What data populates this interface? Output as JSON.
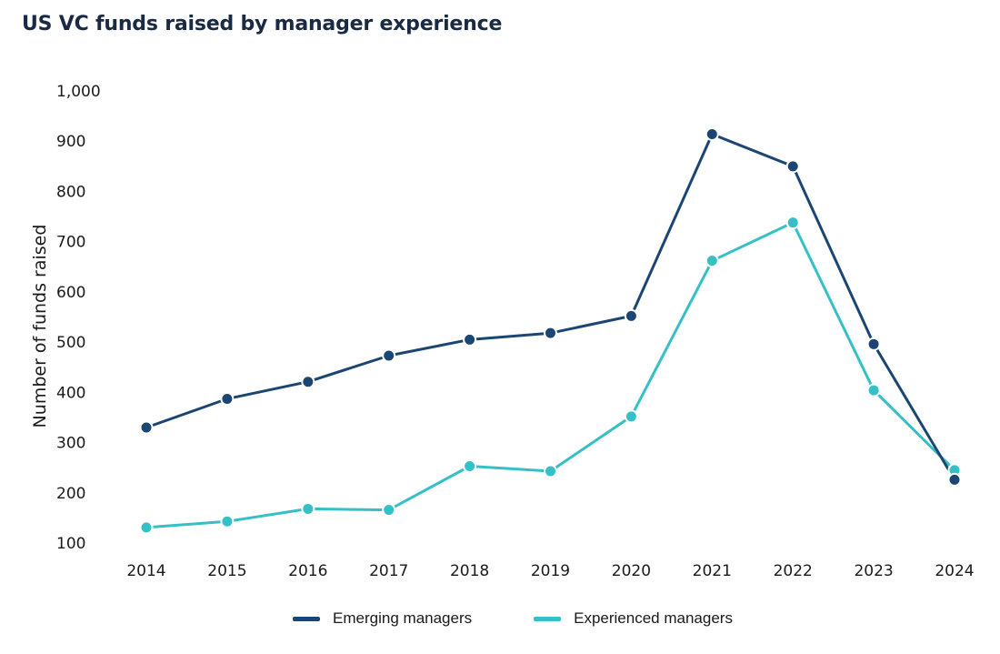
{
  "chart_data": {
    "type": "line",
    "title": "US VC funds raised by manager experience",
    "xlabel": "",
    "ylabel": "Number of funds raised",
    "ylim": [
      100,
      1000
    ],
    "yticks": [
      "1,000",
      "900",
      "800",
      "700",
      "600",
      "500",
      "400",
      "300",
      "200",
      "100"
    ],
    "ytick_values": [
      1000,
      900,
      800,
      700,
      600,
      500,
      400,
      300,
      200,
      100
    ],
    "categories": [
      "2014",
      "2015",
      "2016",
      "2017",
      "2018",
      "2019",
      "2020",
      "2021",
      "2022",
      "2023",
      "2024"
    ],
    "grid": false,
    "legend_position": "bottom",
    "series": [
      {
        "name": "Emerging managers",
        "color": "#1b4674",
        "values": [
          330,
          387,
          421,
          473,
          505,
          518,
          552,
          914,
          850,
          496,
          226
        ]
      },
      {
        "name": "Experienced managers",
        "color": "#35c0c8",
        "values": [
          131,
          143,
          168,
          166,
          253,
          243,
          352,
          662,
          738,
          404,
          245
        ]
      }
    ]
  }
}
